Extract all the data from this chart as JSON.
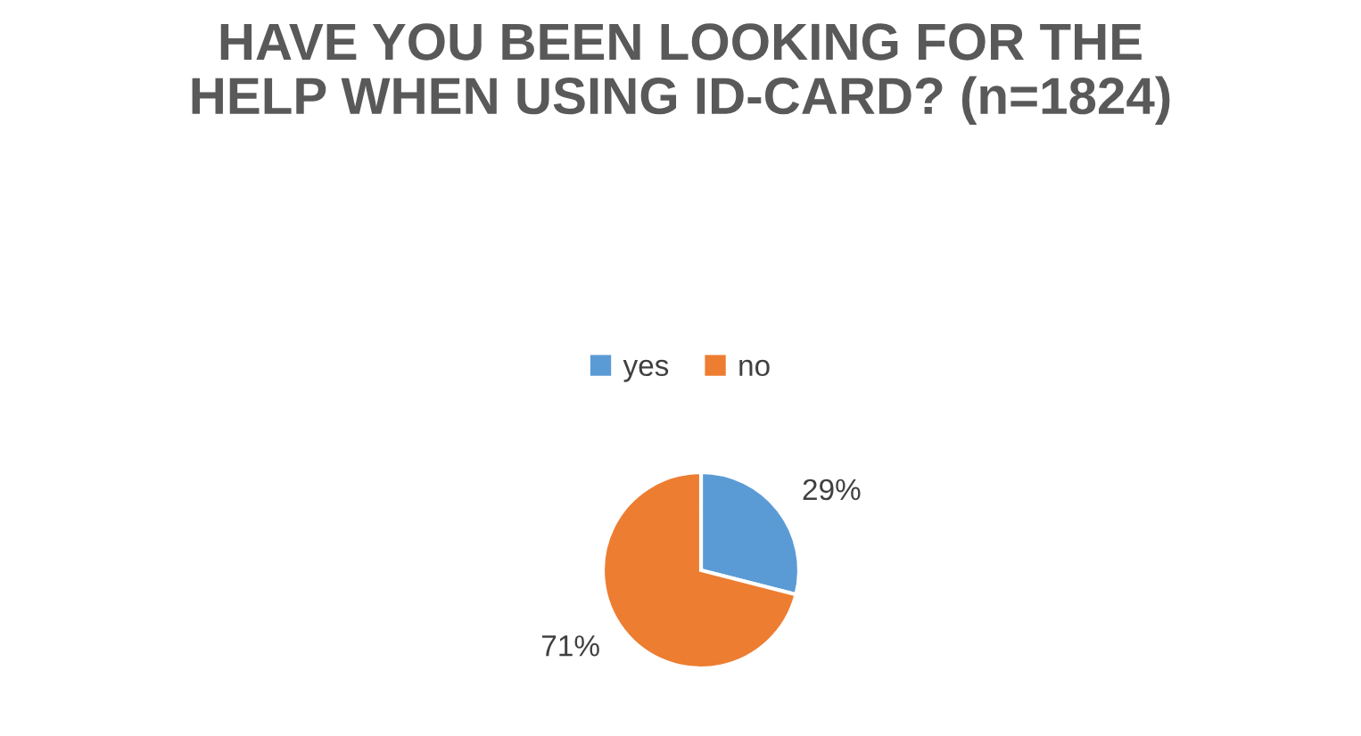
{
  "chart_data": {
    "type": "pie",
    "title": "HAVE YOU BEEN LOOKING FOR THE HELP WHEN USING ID-CARD? (n=1824)",
    "categories": [
      "yes",
      "no"
    ],
    "values": [
      29,
      71
    ],
    "colors": [
      "#5b9bd5",
      "#ed7d31"
    ],
    "value_labels": [
      "29%",
      "71%"
    ],
    "legend": "top"
  }
}
